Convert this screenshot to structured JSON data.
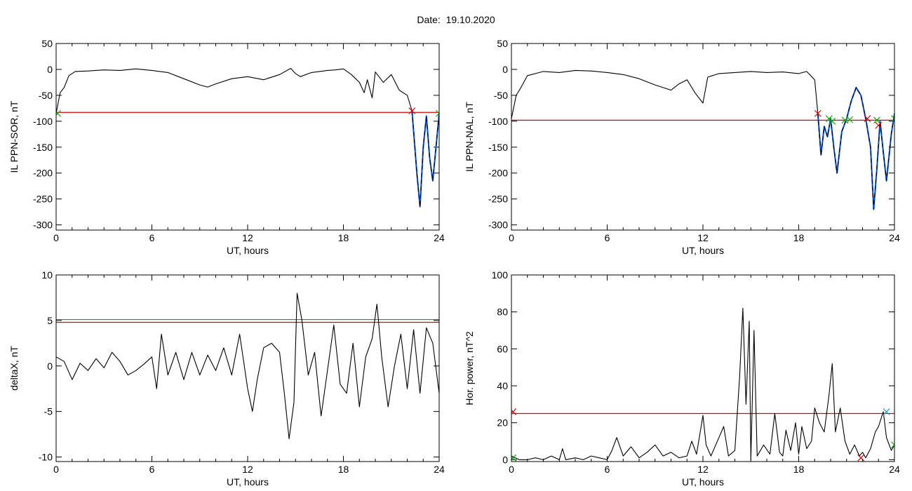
{
  "header": {
    "date_label": "Date:",
    "date_value": "19.10.2020"
  },
  "colors": {
    "trace": "#000000",
    "threshold": "#e00000",
    "blue": "#0050dc",
    "green": "#00b000",
    "cyan": "#1a9fd4"
  },
  "chart_data": [
    {
      "type": "line",
      "ylabel": "IL PPN-SOR, nT",
      "xlabel": "UT, hours",
      "xlim": [
        0,
        24
      ],
      "ylim": [
        -310,
        50
      ],
      "xticks": [
        0,
        6,
        12,
        18,
        24
      ],
      "yticks": [
        50,
        0,
        -50,
        -100,
        -150,
        -200,
        -250,
        -300
      ],
      "threshold": -83,
      "trace": {
        "x": [
          0,
          0.25,
          0.5,
          0.8,
          1.2,
          2,
          3,
          4,
          5,
          6,
          7,
          8,
          9,
          9.5,
          10,
          11,
          12,
          13,
          14,
          14.7,
          15,
          15.3,
          16,
          17,
          17.5,
          18,
          18.5,
          19,
          19.3,
          19.5,
          19.8,
          20,
          20.5,
          21,
          21.5,
          22,
          22.3
        ],
        "y": [
          -85,
          -45,
          -35,
          -12,
          -4,
          -3,
          -1,
          -2,
          1,
          -2,
          -6,
          -18,
          -30,
          -34,
          -28,
          -18,
          -14,
          -20,
          -10,
          2,
          -8,
          -14,
          -6,
          -2,
          -1,
          1,
          -10,
          -25,
          -45,
          -20,
          -55,
          -5,
          -25,
          -10,
          -40,
          -50,
          -80
        ]
      },
      "event": {
        "x": [
          22.3,
          22.6,
          22.8,
          23,
          23.2,
          23.4,
          23.6,
          23.8,
          24
        ],
        "y": [
          -80,
          -200,
          -265,
          -150,
          -90,
          -170,
          -215,
          -150,
          -85
        ]
      },
      "marks": [
        {
          "x": 0.1,
          "y": -85,
          "color": "green"
        },
        {
          "x": 22.3,
          "y": -80,
          "color": "red"
        },
        {
          "x": 24,
          "y": -85,
          "color": "green"
        }
      ]
    },
    {
      "type": "line",
      "ylabel": "IL PPN-NAL, nT",
      "xlabel": "UT, hours",
      "xlim": [
        0,
        24
      ],
      "ylim": [
        -310,
        50
      ],
      "xticks": [
        0,
        6,
        12,
        18,
        24
      ],
      "yticks": [
        50,
        0,
        -50,
        -100,
        -150,
        -200,
        -250,
        -300
      ],
      "threshold": -98,
      "trace": {
        "x": [
          0,
          0.3,
          0.6,
          1,
          1.5,
          2,
          3,
          4,
          5,
          6,
          7,
          8,
          9,
          10,
          10.5,
          11,
          11.5,
          12,
          12.3,
          13,
          14,
          15,
          16,
          17,
          18,
          18.5,
          19,
          19.2
        ],
        "y": [
          -95,
          -50,
          -35,
          -12,
          -8,
          -4,
          -6,
          -2,
          -3,
          -6,
          -10,
          -18,
          -30,
          -40,
          -28,
          -20,
          -45,
          -65,
          -15,
          -8,
          -6,
          -4,
          -6,
          -5,
          -8,
          -4,
          -20,
          -85
        ]
      },
      "event": {
        "x": [
          19.2,
          19.4,
          19.6,
          19.8,
          20,
          20.2,
          20.4,
          20.7,
          21,
          21.3,
          21.6,
          21.9,
          22.2,
          22.5,
          22.7,
          22.9,
          23.1,
          23.3,
          23.5,
          23.8,
          24
        ],
        "y": [
          -85,
          -165,
          -110,
          -130,
          -95,
          -150,
          -200,
          -120,
          -95,
          -60,
          -35,
          -50,
          -95,
          -150,
          -270,
          -190,
          -100,
          -160,
          -215,
          -125,
          -85
        ]
      },
      "marks": [
        {
          "x": 19.2,
          "y": -85,
          "color": "red"
        },
        {
          "x": 19.9,
          "y": -95,
          "color": "green"
        },
        {
          "x": 20.1,
          "y": -100,
          "color": "green"
        },
        {
          "x": 20.9,
          "y": -98,
          "color": "green"
        },
        {
          "x": 21.2,
          "y": -97,
          "color": "green"
        },
        {
          "x": 22.3,
          "y": -95,
          "color": "red"
        },
        {
          "x": 22.9,
          "y": -98,
          "color": "green"
        },
        {
          "x": 23.0,
          "y": -108,
          "color": "red"
        },
        {
          "x": 24,
          "y": -95,
          "color": "green"
        }
      ]
    },
    {
      "type": "line",
      "ylabel": "deltaX, nT",
      "xlabel": "UT, hours",
      "xlim": [
        0,
        24
      ],
      "ylim": [
        -10.5,
        10
      ],
      "xticks": [
        0,
        6,
        12,
        18,
        24
      ],
      "yticks": [
        10,
        5,
        0,
        -5,
        -10
      ],
      "threshold": 4.8,
      "threshold2": 5.1,
      "trace": {
        "x": [
          0,
          0.5,
          1,
          1.5,
          2,
          2.5,
          3,
          3.5,
          4,
          4.5,
          5,
          5.5,
          6,
          6.3,
          6.6,
          7,
          7.5,
          8,
          8.5,
          9,
          9.5,
          10,
          10.5,
          11,
          11.5,
          12,
          12.3,
          12.6,
          13,
          13.5,
          14,
          14.3,
          14.6,
          14.9,
          15.1,
          15.4,
          15.8,
          16.2,
          16.6,
          17,
          17.4,
          17.8,
          18.2,
          18.6,
          19,
          19.4,
          19.8,
          20.1,
          20.4,
          20.8,
          21.2,
          21.6,
          22,
          22.4,
          22.8,
          23.2,
          23.6,
          24
        ],
        "y": [
          1,
          0.5,
          -1.5,
          0.3,
          -0.5,
          0.8,
          -0.2,
          1.5,
          0.5,
          -1,
          -0.5,
          0.2,
          1,
          -2.5,
          3.5,
          -1,
          1.5,
          -1.5,
          1.5,
          -1,
          1.2,
          -0.5,
          2,
          -1,
          3.5,
          -2.5,
          -5,
          -1.5,
          2,
          2.5,
          1.5,
          -3,
          -8,
          -4,
          8,
          5,
          -1,
          1.5,
          -5.5,
          -0.5,
          4.5,
          -2,
          -3,
          2.5,
          -4.5,
          1,
          3,
          6.8,
          1,
          -4.5,
          0,
          3.5,
          -2.5,
          4,
          -3,
          4.2,
          2.5,
          -3
        ]
      },
      "marks": []
    },
    {
      "type": "line",
      "ylabel": "Hor. power, nT^2",
      "xlabel": "UT, hours",
      "xlim": [
        0,
        24
      ],
      "ylim": [
        -1,
        100
      ],
      "xticks": [
        0,
        6,
        12,
        18,
        24
      ],
      "yticks": [
        100,
        80,
        60,
        40,
        20,
        0
      ],
      "threshold": 25,
      "trace": {
        "x": [
          0,
          0.5,
          1,
          1.5,
          2,
          2.5,
          3,
          3.2,
          3.4,
          4,
          4.5,
          5,
          5.5,
          6,
          6.3,
          6.6,
          7,
          7.5,
          8,
          8.5,
          9,
          9.5,
          10,
          10.5,
          11,
          11.3,
          11.6,
          12,
          12.2,
          12.5,
          13,
          13.3,
          13.6,
          14,
          14.3,
          14.5,
          14.7,
          14.9,
          15,
          15.2,
          15.4,
          15.8,
          16.2,
          16.5,
          16.8,
          17,
          17.2,
          17.5,
          17.8,
          18,
          18.2,
          18.5,
          18.8,
          19,
          19.3,
          19.6,
          19.9,
          20.1,
          20.3,
          20.6,
          20.9,
          21.2,
          21.5,
          21.8,
          22,
          22.2,
          22.5,
          22.8,
          23,
          23.3,
          23.5,
          23.8,
          24
        ],
        "y": [
          2,
          0,
          0,
          1,
          0,
          2,
          0,
          6,
          0,
          1,
          0,
          2,
          1,
          0,
          5,
          12,
          2,
          7,
          1,
          4,
          8,
          2,
          4,
          1,
          2,
          10,
          3,
          24,
          8,
          2,
          12,
          18,
          2,
          5,
          45,
          82,
          30,
          75,
          0,
          70,
          2,
          8,
          3,
          25,
          4,
          2,
          16,
          5,
          20,
          3,
          18,
          6,
          10,
          28,
          20,
          15,
          35,
          52,
          15,
          28,
          10,
          3,
          8,
          2,
          4,
          1,
          6,
          15,
          18,
          26,
          12,
          5,
          8
        ]
      },
      "marks": [
        {
          "x": 0.1,
          "y": 26,
          "color": "red"
        },
        {
          "x": 0.1,
          "y": 1,
          "color": "green"
        },
        {
          "x": 21.9,
          "y": 1,
          "color": "red"
        },
        {
          "x": 23.5,
          "y": 26,
          "color": "cyan"
        },
        {
          "x": 24,
          "y": 8,
          "color": "green"
        }
      ]
    }
  ]
}
